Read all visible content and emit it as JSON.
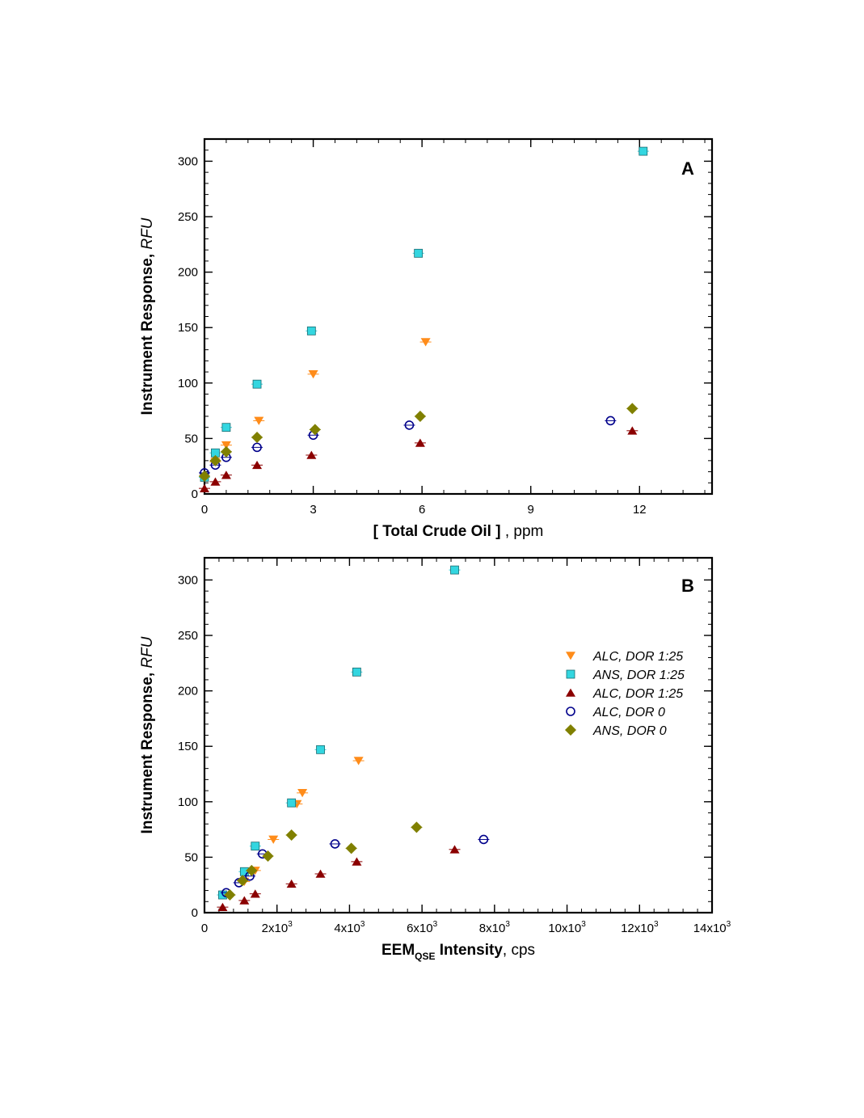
{
  "chart_data": [
    {
      "type": "scatter",
      "panel": "A",
      "xlabel": {
        "bold": "[ Total Crude Oil ]",
        "normal": " , ppm"
      },
      "ylabel": {
        "bold": "Instrument Response, ",
        "italic": "RFU"
      },
      "xlim": [
        0,
        14
      ],
      "ylim": [
        0,
        320
      ],
      "xticks": [
        0,
        3,
        6,
        9,
        12
      ],
      "xtick_labels": [
        "0",
        "3",
        "6",
        "9",
        "12"
      ],
      "yticks": [
        0,
        50,
        100,
        150,
        200,
        250,
        300
      ],
      "ytick_labels": [
        "0",
        "50",
        "100",
        "150",
        "200",
        "250",
        "300"
      ],
      "grid": false,
      "series": [
        {
          "marker": "triangle-down",
          "color": "#ff8c1a",
          "x": [
            0,
            0.3,
            0.6,
            1.5,
            3.0,
            6.1
          ],
          "y": [
            15,
            29,
            44,
            66,
            108,
            137
          ]
        },
        {
          "marker": "square",
          "color": "#33d6e0",
          "x": [
            0,
            0.3,
            0.6,
            1.45,
            2.95,
            5.9,
            12.1
          ],
          "y": [
            15,
            37,
            60,
            99,
            147,
            217,
            309
          ]
        },
        {
          "marker": "triangle-up",
          "color": "#8b0000",
          "x": [
            0,
            0.3,
            0.6,
            1.45,
            2.95,
            5.95,
            11.8
          ],
          "y": [
            5,
            11,
            17,
            26,
            35,
            46,
            57
          ]
        },
        {
          "marker": "circle-open",
          "color": "#00008b",
          "x": [
            0,
            0.3,
            0.6,
            1.45,
            3.0,
            5.65,
            11.2
          ],
          "y": [
            19,
            26,
            33,
            42,
            53,
            62,
            66
          ]
        },
        {
          "marker": "diamond",
          "color": "#808000",
          "x": [
            0,
            0.3,
            0.6,
            1.45,
            3.05,
            5.95,
            11.8
          ],
          "y": [
            16,
            30,
            38,
            51,
            58,
            70,
            77
          ]
        }
      ]
    },
    {
      "type": "scatter",
      "panel": "B",
      "xlabel": {
        "bold_pre": "EEM",
        "sub": "QSE",
        "bold_post": " Intensity",
        "normal": ", cps"
      },
      "ylabel": {
        "bold": "Instrument Response, ",
        "italic": "RFU"
      },
      "xlim": [
        0,
        14000
      ],
      "ylim": [
        0,
        320
      ],
      "xticks": [
        0,
        2000,
        4000,
        6000,
        8000,
        10000,
        12000,
        14000
      ],
      "xtick_labels": [
        {
          "base": "0",
          "sup": ""
        },
        {
          "base": "2x10",
          "sup": "3"
        },
        {
          "base": "4x10",
          "sup": "3"
        },
        {
          "base": "6x10",
          "sup": "3"
        },
        {
          "base": "8x10",
          "sup": "3"
        },
        {
          "base": "10x10",
          "sup": "3"
        },
        {
          "base": "12x10",
          "sup": "3"
        },
        {
          "base": "14x10",
          "sup": "3"
        }
      ],
      "yticks": [
        0,
        50,
        100,
        150,
        200,
        250,
        300
      ],
      "ytick_labels": [
        "0",
        "50",
        "100",
        "150",
        "200",
        "250",
        "300"
      ],
      "grid": false,
      "legend_position": "right",
      "series": [
        {
          "name": "ALC, DOR 1:25",
          "marker": "triangle-down",
          "color": "#ff8c1a",
          "x": [
            1100,
            1400,
            1900,
            2550,
            2700,
            4250
          ],
          "y": [
            28,
            38,
            66,
            98,
            108,
            137
          ]
        },
        {
          "name": "ANS, DOR 1:25",
          "marker": "square",
          "color": "#33d6e0",
          "x": [
            500,
            1100,
            1400,
            2400,
            3200,
            4200,
            6900
          ],
          "y": [
            16,
            37,
            60,
            99,
            147,
            217,
            309
          ]
        },
        {
          "name": "ALC, DOR 1:25",
          "marker": "triangle-up",
          "color": "#8b0000",
          "x": [
            500,
            1100,
            1400,
            2400,
            3200,
            4200,
            6900
          ],
          "y": [
            5,
            11,
            17,
            26,
            35,
            46,
            57
          ]
        },
        {
          "name": "ALC, DOR 0",
          "marker": "circle-open",
          "color": "#00008b",
          "x": [
            600,
            950,
            1250,
            1600,
            3600,
            7700
          ],
          "y": [
            18,
            27,
            33,
            53,
            62,
            66
          ]
        },
        {
          "name": "ANS, DOR 0",
          "marker": "diamond",
          "color": "#808000",
          "x": [
            700,
            1050,
            1300,
            1750,
            2400,
            4050,
            5850
          ],
          "y": [
            16,
            29,
            38,
            51,
            70,
            58,
            77
          ]
        }
      ]
    }
  ]
}
